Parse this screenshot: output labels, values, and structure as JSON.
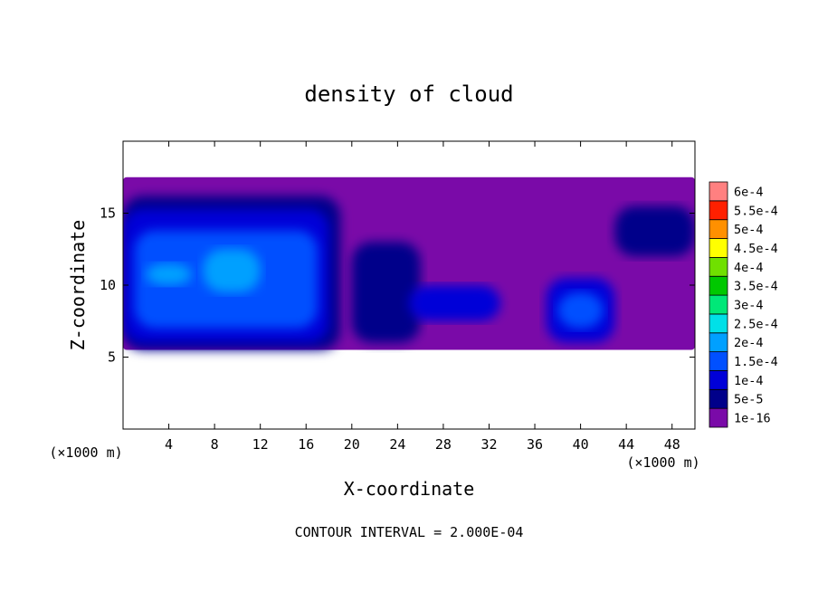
{
  "chart_data": {
    "type": "heatmap",
    "title": "density of cloud",
    "xlabel": "X-coordinate",
    "ylabel": "Z-coordinate",
    "x_unit": "(×1000 m)",
    "y_unit": "(×1000 m)",
    "footer": "CONTOUR INTERVAL = 2.000E-04",
    "xlim": [
      0,
      50
    ],
    "ylim": [
      0,
      20
    ],
    "x_ticks": [
      4,
      8,
      12,
      16,
      20,
      24,
      28,
      32,
      36,
      40,
      44,
      48
    ],
    "y_ticks": [
      5,
      10,
      15
    ],
    "colorbar": {
      "levels": [
        "1e-16",
        "5e-5",
        "1e-4",
        "1.5e-4",
        "2e-4",
        "2.5e-4",
        "3e-4",
        "3.5e-4",
        "4e-4",
        "4.5e-4",
        "5e-4",
        "5.5e-4",
        "6e-4"
      ],
      "colors": [
        "#7a0aa8",
        "#00008a",
        "#0000d8",
        "#0050ff",
        "#00a0ff",
        "#00e0e8",
        "#00e878",
        "#00c800",
        "#70e000",
        "#ffff00",
        "#ff9000",
        "#ff2000",
        "#ff8080"
      ]
    },
    "field_regions": [
      {
        "x": [
          0,
          50
        ],
        "z": [
          5.5,
          17.5
        ],
        "level": "1e-16"
      },
      {
        "x": [
          0,
          19
        ],
        "z": [
          5.5,
          16.2
        ],
        "level": "5e-5"
      },
      {
        "x": [
          0,
          18
        ],
        "z": [
          6,
          15.3
        ],
        "level": "1e-4"
      },
      {
        "x": [
          1,
          17
        ],
        "z": [
          7,
          13.8
        ],
        "level": "1.5e-4"
      },
      {
        "x": [
          2,
          6
        ],
        "z": [
          10,
          11.5
        ],
        "level": "2e-4"
      },
      {
        "x": [
          7,
          12
        ],
        "z": [
          9.5,
          12.5
        ],
        "level": "2e-4"
      },
      {
        "x": [
          20,
          26
        ],
        "z": [
          6,
          13
        ],
        "level": "5e-5"
      },
      {
        "x": [
          25,
          33
        ],
        "z": [
          7.5,
          10
        ],
        "level": "1e-4"
      },
      {
        "x": [
          37,
          43
        ],
        "z": [
          6,
          10.5
        ],
        "level": "1e-4"
      },
      {
        "x": [
          38,
          42
        ],
        "z": [
          7,
          9.5
        ],
        "level": "1.5e-4"
      },
      {
        "x": [
          43,
          50
        ],
        "z": [
          12,
          15.5
        ],
        "level": "5e-5"
      }
    ]
  }
}
